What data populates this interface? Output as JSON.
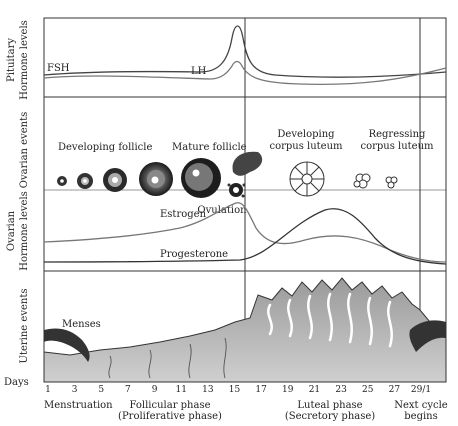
{
  "panels": {
    "pituitary": {
      "label_line1": "Pituitary",
      "label_line2": "Hormone levels",
      "fsh": "FSH",
      "lh": "LH"
    },
    "ovarian": {
      "label": "Ovarian events",
      "developing_follicle": "Developing follicle",
      "mature_follicle": "Mature follicle",
      "ovulation": "Ovulation",
      "developing_cl_line1": "Developing",
      "developing_cl_line2": "corpus luteum",
      "regressing_cl_line1": "Regressing",
      "regressing_cl_line2": "corpus luteum"
    },
    "ovarian_hormones": {
      "label_line1": "Ovarian",
      "label_line2": "Hormone levels",
      "estrogen": "Estrogen",
      "progesterone": "Progesterone"
    },
    "uterine": {
      "label": "Uterine events",
      "menses": "Menses"
    }
  },
  "days_axis": {
    "label": "Days",
    "ticks": [
      "1",
      "3",
      "5",
      "7",
      "9",
      "11",
      "13",
      "15",
      "17",
      "19",
      "21",
      "23",
      "25",
      "27",
      "29/1"
    ]
  },
  "phases": {
    "menstruation": "Menstruation",
    "follicular_line1": "Follicular phase",
    "follicular_line2": "(Proliferative phase)",
    "luteal_line1": "Luteal phase",
    "luteal_line2": "(Secretory phase)",
    "next_line1": "Next cycle",
    "next_line2": "begins"
  }
}
